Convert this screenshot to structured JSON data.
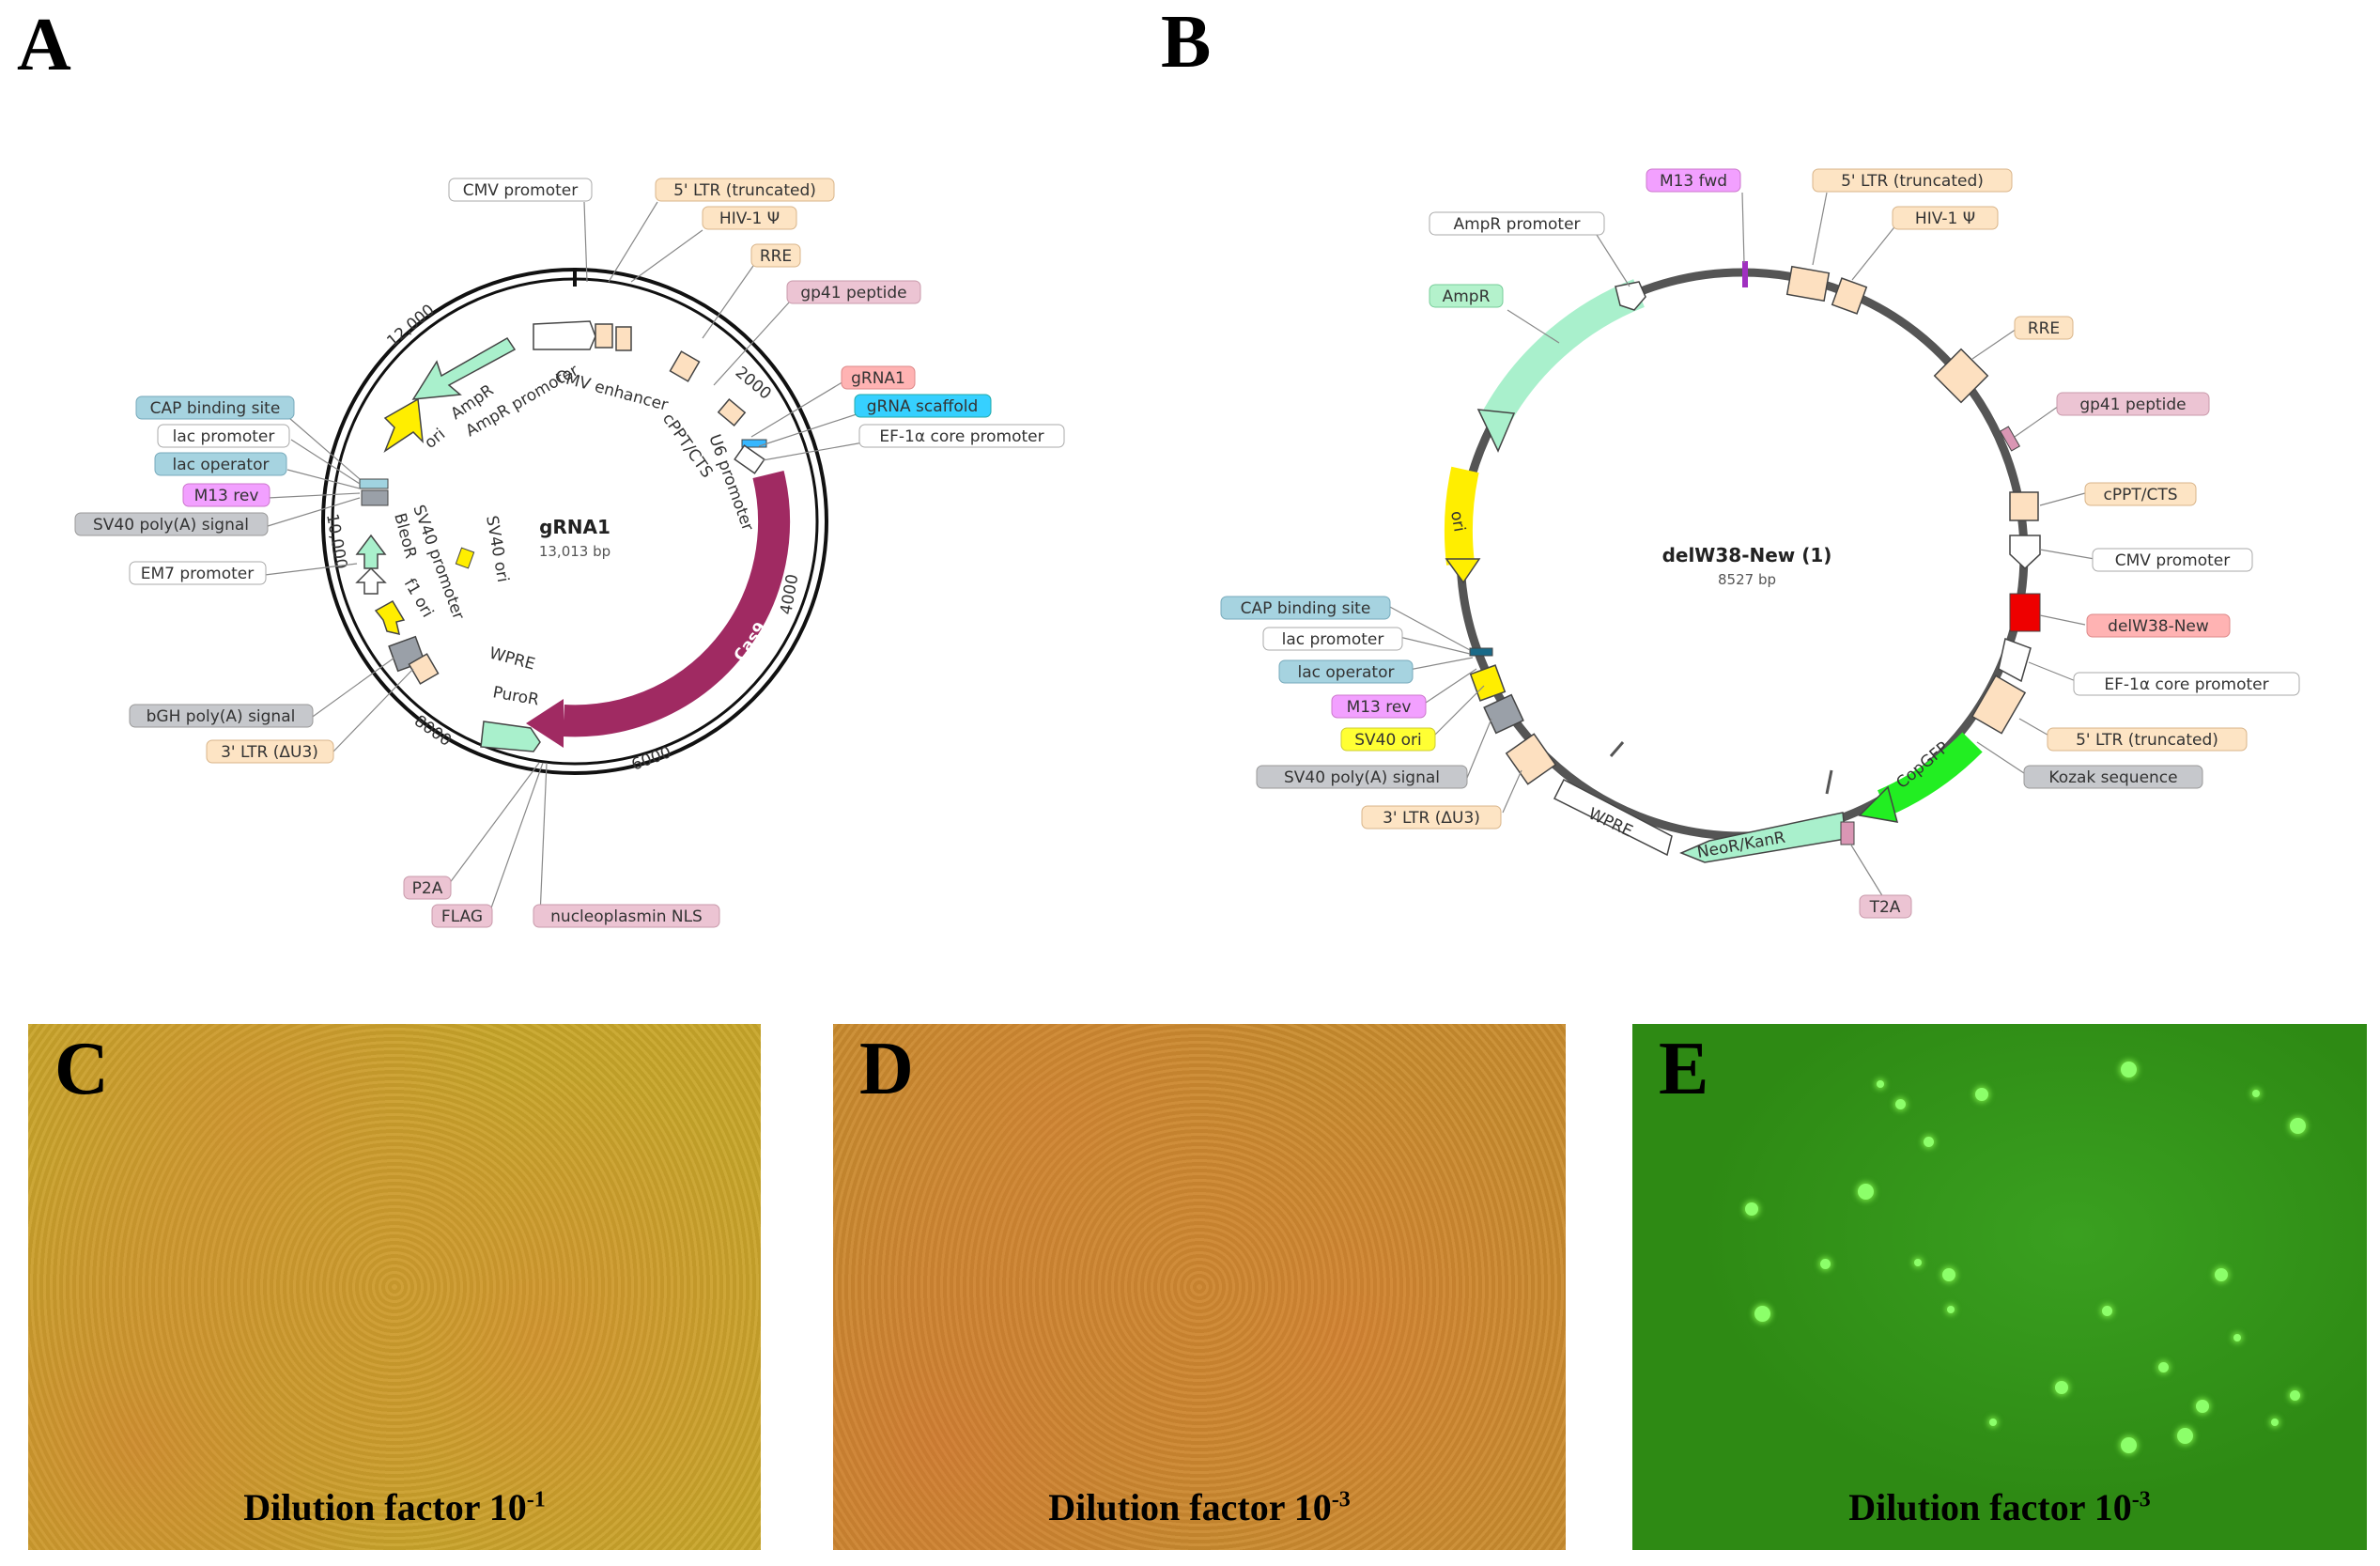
{
  "panels": {
    "a": {
      "letter": "A"
    },
    "b": {
      "letter": "B"
    }
  },
  "plasmid_a": {
    "name": "gRNA1",
    "size": "13,013 bp",
    "ticks": [
      "2000",
      "4000",
      "6000",
      "8000",
      "10,000",
      "12,000"
    ],
    "callouts": [
      "CMV promoter",
      "5' LTR (truncated)",
      "HIV-1 Ψ",
      "RRE",
      "gp41 peptide",
      "gRNA1",
      "gRNA scaffold",
      "EF-1α core promoter",
      "CAP binding site",
      "lac promoter",
      "lac operator",
      "M13 rev",
      "SV40 poly(A) signal",
      "EM7 promoter",
      "bGH poly(A) signal",
      "3' LTR (ΔU3)",
      "P2A",
      "FLAG",
      "nucleoplasmin NLS"
    ],
    "inner_labels": [
      "CMV enhancer",
      "AmpR",
      "AmpR promoter",
      "ori",
      "cPPT/CTS",
      "U6 promoter",
      "SV40 ori",
      "SV40 promoter",
      "BleoR",
      "f1 ori",
      "WPRE",
      "PuroR",
      "Cas9"
    ]
  },
  "plasmid_b": {
    "name": "delW38-New (1)",
    "size": "8527 bp",
    "callouts": [
      "M13 fwd",
      "5' LTR (truncated)",
      "HIV-1 Ψ",
      "AmpR promoter",
      "AmpR",
      "RRE",
      "gp41 peptide",
      "cPPT/CTS",
      "CMV promoter",
      "delW38-New",
      "EF-1α core promoter",
      "5' LTR (truncated)",
      "Kozak sequence",
      "CAP binding site",
      "lac promoter",
      "lac operator",
      "M13 rev",
      "SV40 ori",
      "SV40 poly(A) signal",
      "3' LTR (ΔU3)",
      "T2A"
    ],
    "inner_labels": [
      "ori",
      "WPRE",
      "NeoR/KanR",
      "CopGFP"
    ]
  },
  "micrographs": [
    {
      "letter": "C",
      "caption": "Dilution factor 10",
      "exponent": "-1",
      "background": "#c8a62a"
    },
    {
      "letter": "D",
      "caption": "Dilution factor 10",
      "exponent": "-3",
      "background": "#c98c2e"
    },
    {
      "letter": "E",
      "caption": "Dilution factor 10",
      "exponent": "-3",
      "background": "#2e8a14"
    }
  ]
}
